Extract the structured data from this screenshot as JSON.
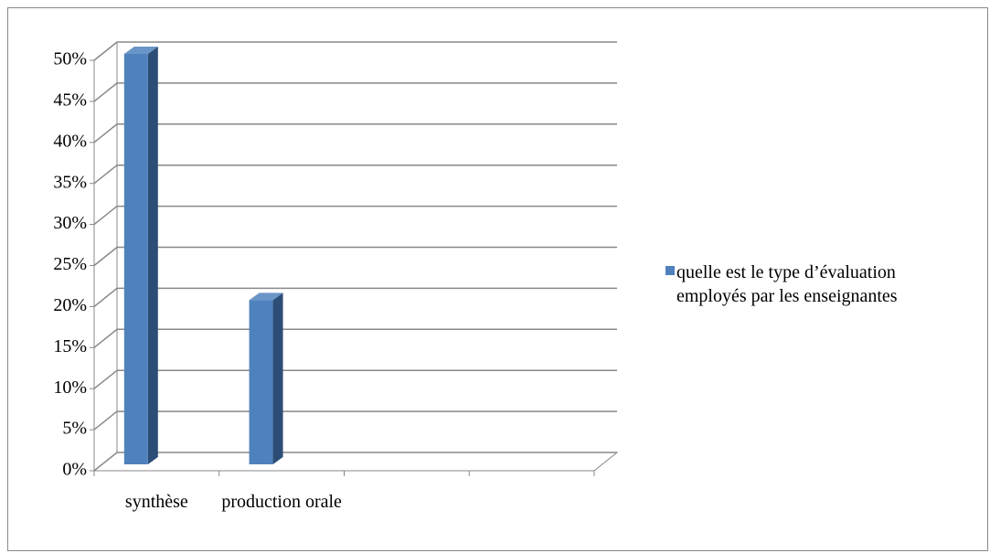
{
  "chart_data": {
    "type": "bar3d",
    "categories": [
      "synthèse",
      "production orale",
      null,
      null
    ],
    "series": [
      {
        "name": "quelle est le type d’évaluation employés par les enseignantes",
        "color": "#4f81bd",
        "values": [
          50,
          20,
          null,
          null
        ]
      }
    ],
    "ylim": [
      0,
      50
    ],
    "yticks": [
      {
        "value": 0,
        "label": "0%"
      },
      {
        "value": 5,
        "label": "5%"
      },
      {
        "value": 10,
        "label": "10%"
      },
      {
        "value": 15,
        "label": "15%"
      },
      {
        "value": 20,
        "label": "20%"
      },
      {
        "value": 25,
        "label": "25%"
      },
      {
        "value": 30,
        "label": "30%"
      },
      {
        "value": 35,
        "label": "35%"
      },
      {
        "value": 40,
        "label": "40%"
      },
      {
        "value": 45,
        "label": "45%"
      },
      {
        "value": 50,
        "label": "50%"
      }
    ],
    "grid": true,
    "legend": "right"
  }
}
